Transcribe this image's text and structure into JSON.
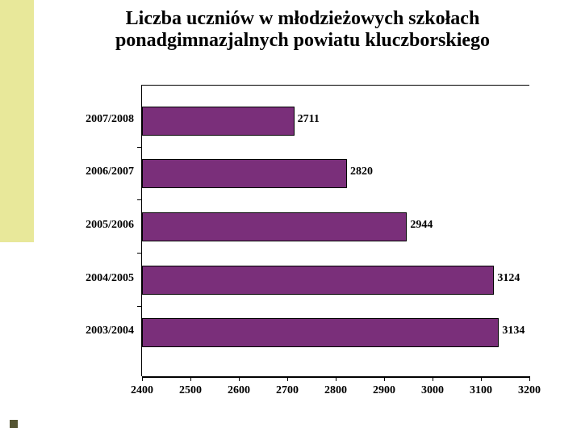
{
  "title": {
    "line1": "Liczba uczniów w młodzieżowych szkołach",
    "line2": "ponadgimnazjalnych powiatu kluczborskiego",
    "fontsize": 24
  },
  "chart": {
    "type": "bar-horizontal",
    "categories": [
      "2007/2008",
      "2006/2007",
      "2005/2006",
      "2004/2005",
      "2003/2004"
    ],
    "values": [
      2711,
      2820,
      2944,
      3124,
      3134
    ],
    "bar_color": "#7a2f7a",
    "bar_border": "#000000",
    "xlim": [
      2400,
      3200
    ],
    "xtick_step": 100,
    "xticks": [
      2400,
      2500,
      2600,
      2700,
      2800,
      2900,
      3000,
      3100,
      3200
    ],
    "label_fontsize": 14,
    "tick_fontsize": 14,
    "background_color": "#ffffff",
    "axis_color": "#000000"
  },
  "stripe_color": "#e8e89a",
  "bullet_color": "#555533"
}
